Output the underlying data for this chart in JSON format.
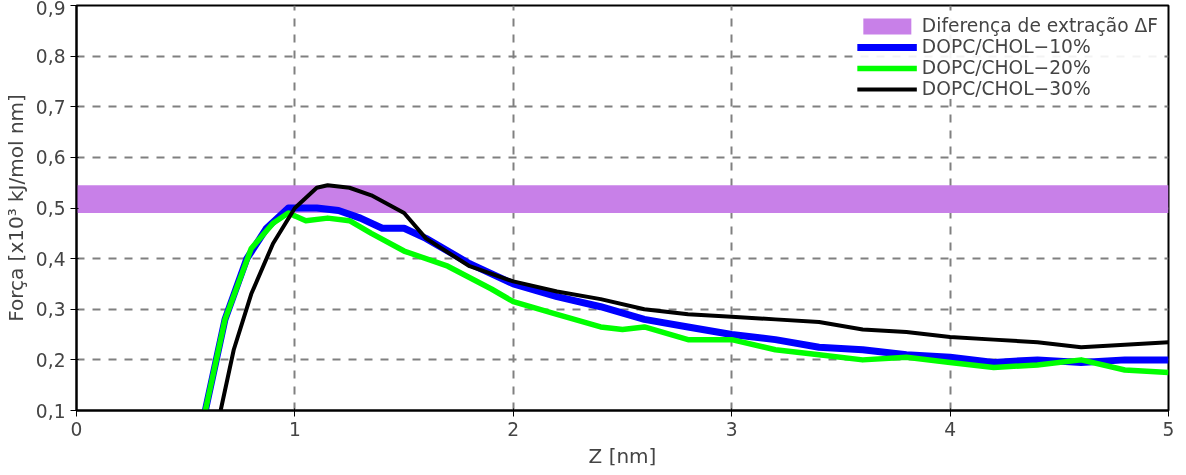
{
  "chart_data": {
    "type": "line",
    "xlabel": "Z [nm]",
    "ylabel": "Força [x10³ kJ/mol nm]",
    "xlim": [
      0,
      5
    ],
    "ylim": [
      0.1,
      0.9
    ],
    "xticks": [
      0,
      1,
      2,
      3,
      4,
      5
    ],
    "yticks": [
      {
        "value": 0.1,
        "label": "0,1"
      },
      {
        "value": 0.2,
        "label": "0,2"
      },
      {
        "value": 0.3,
        "label": "0,3"
      },
      {
        "value": 0.4,
        "label": "0,4"
      },
      {
        "value": 0.5,
        "label": "0,5"
      },
      {
        "value": 0.6,
        "label": "0,6"
      },
      {
        "value": 0.7,
        "label": "0,7"
      },
      {
        "value": 0.8,
        "label": "0,8"
      },
      {
        "value": 0.9,
        "label": "0,9"
      }
    ],
    "grid": true,
    "legend": "top right",
    "line_style": "solid",
    "marker": "none",
    "bands": [
      {
        "axis": "y",
        "from": 0.49,
        "to": 0.545,
        "label": "Diferença de extração ΔF",
        "color": "#c880e8"
      }
    ],
    "series": [
      {
        "name": "DOPC/CHOL−10%",
        "color": "#0000ff",
        "x": [
          0.59,
          0.68,
          0.78,
          0.87,
          0.97,
          1.0,
          1.1,
          1.2,
          1.3,
          1.4,
          1.5,
          1.6,
          1.8,
          2.0,
          2.2,
          2.4,
          2.6,
          2.8,
          3.0,
          3.2,
          3.4,
          3.6,
          3.8,
          4.0,
          4.2,
          4.4,
          4.6,
          4.8,
          5.0
        ],
        "values": [
          0.1,
          0.28,
          0.4,
          0.46,
          0.5,
          0.5,
          0.5,
          0.495,
          0.48,
          0.46,
          0.46,
          0.44,
          0.39,
          0.35,
          0.325,
          0.305,
          0.28,
          0.265,
          0.25,
          0.24,
          0.225,
          0.22,
          0.21,
          0.205,
          0.195,
          0.2,
          0.195,
          0.2,
          0.2
        ]
      },
      {
        "name": "DOPC/CHOL−20%",
        "color": "#00ff00",
        "x": [
          0.59,
          0.68,
          0.8,
          0.9,
          0.97,
          1.05,
          1.15,
          1.25,
          1.35,
          1.5,
          1.7,
          1.9,
          2.0,
          2.2,
          2.4,
          2.5,
          2.6,
          2.8,
          3.0,
          3.2,
          3.4,
          3.6,
          3.8,
          4.0,
          4.2,
          4.4,
          4.6,
          4.8,
          5.0
        ],
        "values": [
          0.1,
          0.28,
          0.42,
          0.47,
          0.49,
          0.475,
          0.48,
          0.475,
          0.45,
          0.415,
          0.385,
          0.34,
          0.315,
          0.29,
          0.265,
          0.26,
          0.265,
          0.24,
          0.24,
          0.22,
          0.21,
          0.2,
          0.205,
          0.195,
          0.185,
          0.19,
          0.2,
          0.18,
          0.175
        ]
      },
      {
        "name": "DOPC/CHOL−30%",
        "color": "#000000",
        "x": [
          0.66,
          0.72,
          0.8,
          0.9,
          1.0,
          1.1,
          1.15,
          1.25,
          1.35,
          1.5,
          1.6,
          1.8,
          2.0,
          2.2,
          2.4,
          2.6,
          2.8,
          3.0,
          3.2,
          3.4,
          3.6,
          3.8,
          4.0,
          4.2,
          4.4,
          4.6,
          4.8,
          5.0
        ],
        "values": [
          0.1,
          0.22,
          0.33,
          0.43,
          0.5,
          0.54,
          0.545,
          0.54,
          0.525,
          0.49,
          0.44,
          0.385,
          0.355,
          0.335,
          0.32,
          0.3,
          0.29,
          0.285,
          0.28,
          0.275,
          0.26,
          0.255,
          0.245,
          0.24,
          0.235,
          0.225,
          0.23,
          0.235
        ]
      }
    ]
  }
}
